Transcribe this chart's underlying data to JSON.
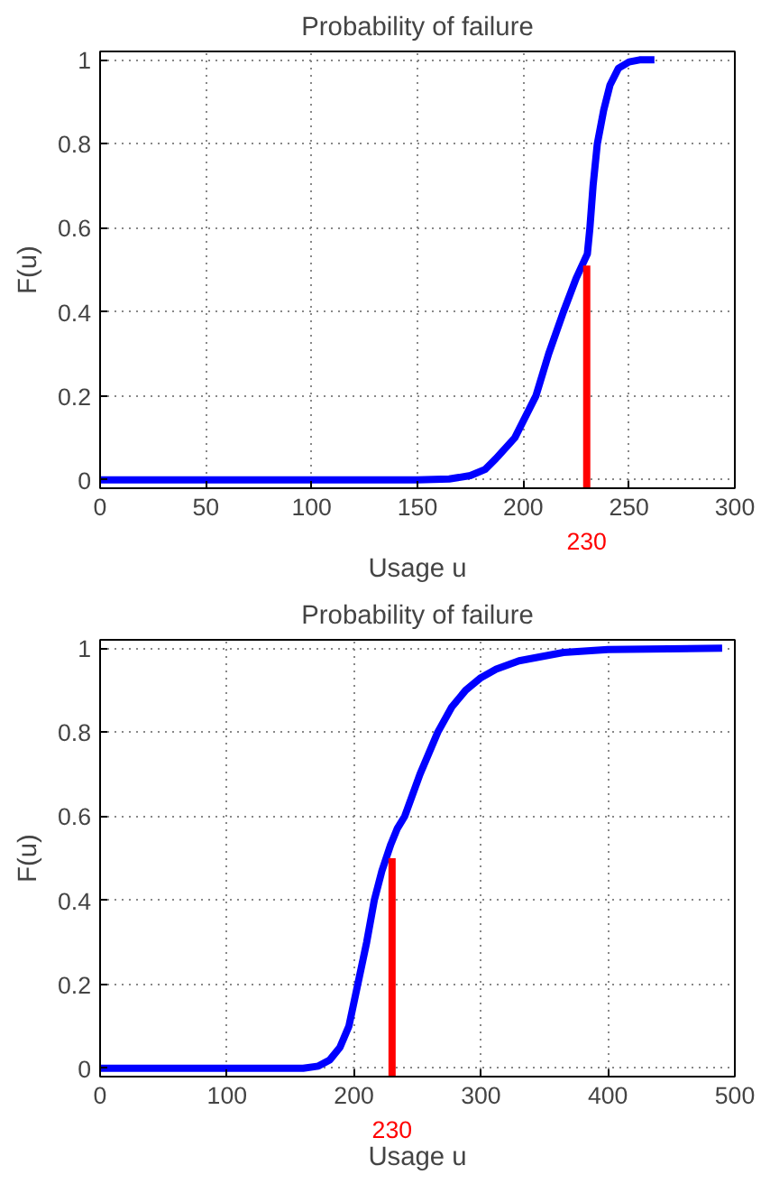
{
  "chart_data": [
    {
      "type": "line",
      "title": "Probability of failure",
      "xlabel": "Usage u",
      "ylabel": "F(u)",
      "xlim": [
        0,
        300
      ],
      "ylim": [
        -0.02,
        1.02
      ],
      "xticks": [
        0,
        50,
        100,
        150,
        200,
        250,
        300
      ],
      "yticks": [
        0,
        0.2,
        0.4,
        0.6,
        0.8,
        1
      ],
      "grid": true,
      "series": [
        {
          "color": "#0000ff",
          "x": [
            0,
            150,
            165,
            175,
            182,
            187,
            196,
            201,
            206,
            212,
            219,
            225,
            230.3,
            231.5,
            233,
            235,
            238,
            241,
            245,
            250,
            255,
            262
          ],
          "values": [
            0,
            0,
            0.002,
            0.01,
            0.025,
            0.05,
            0.1,
            0.15,
            0.2,
            0.3,
            0.4,
            0.48,
            0.538,
            0.6,
            0.7,
            0.8,
            0.88,
            0.94,
            0.98,
            0.995,
            1,
            1
          ]
        },
        {
          "color": "#ff0000",
          "x": [
            230,
            230
          ],
          "values": [
            -0.02,
            0.51
          ]
        }
      ],
      "annotations": [
        {
          "text": "230",
          "x": 230,
          "y": -0.02
        }
      ]
    },
    {
      "type": "line",
      "title": "Probability of failure",
      "xlabel": "Usage u",
      "ylabel": "F(u)",
      "xlim": [
        0,
        500
      ],
      "ylim": [
        -0.02,
        1.02
      ],
      "xticks": [
        0,
        100,
        200,
        300,
        400,
        500
      ],
      "yticks": [
        0,
        0.2,
        0.4,
        0.6,
        0.8,
        1
      ],
      "grid": true,
      "series": [
        {
          "color": "#0000ff",
          "x": [
            0,
            160,
            172,
            181,
            189,
            196,
            203,
            210,
            216,
            222,
            229,
            234,
            240,
            252,
            266,
            277,
            288,
            300,
            312,
            330,
            365,
            400,
            490
          ],
          "values": [
            0,
            0,
            0.005,
            0.02,
            0.05,
            0.1,
            0.2,
            0.3,
            0.4,
            0.47,
            0.533,
            0.57,
            0.6,
            0.7,
            0.8,
            0.86,
            0.9,
            0.93,
            0.95,
            0.97,
            0.99,
            0.997,
            1
          ]
        },
        {
          "color": "#ff0000",
          "x": [
            230,
            230
          ],
          "values": [
            -0.02,
            0.5
          ]
        }
      ],
      "annotations": [
        {
          "text": "230",
          "x": 230,
          "y": -0.02
        }
      ]
    }
  ]
}
